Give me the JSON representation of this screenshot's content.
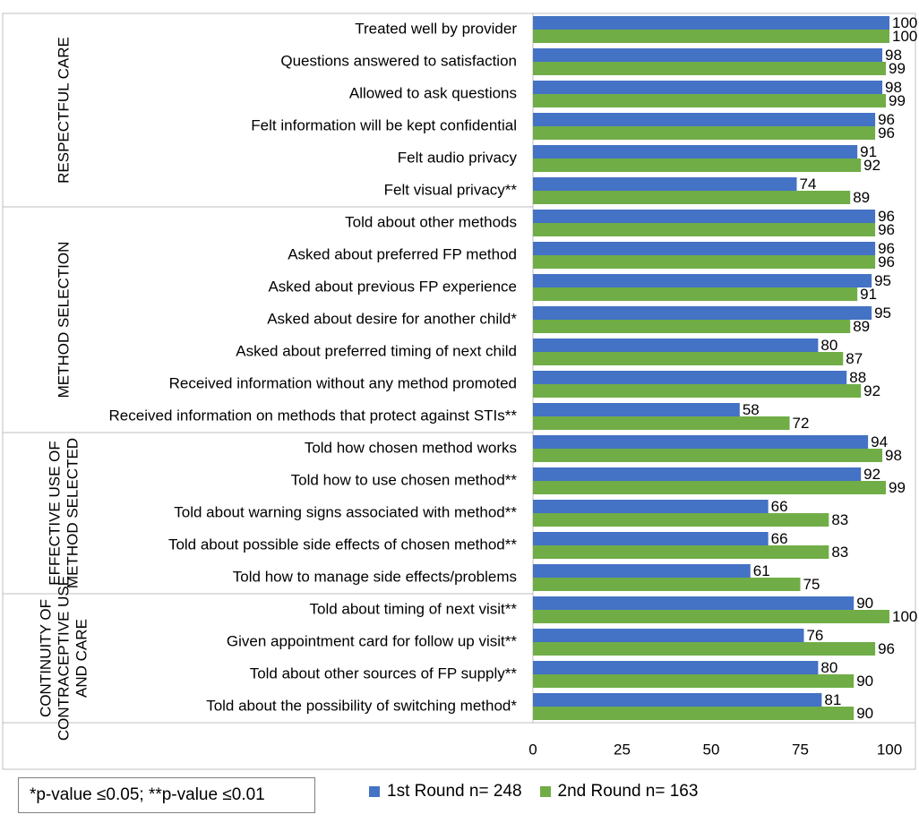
{
  "chart_data": {
    "type": "bar",
    "orientation": "horizontal",
    "xlim": [
      0,
      100
    ],
    "xticks": [
      0,
      25,
      50,
      75,
      100
    ],
    "groups": [
      {
        "label": "RESPECTFUL CARE",
        "count": 6
      },
      {
        "label": "METHOD SELECTION",
        "count": 7
      },
      {
        "label": "EFFECTIVE USE OF METHOD SELECTED",
        "count": 5
      },
      {
        "label": "CONTINUITY OF CONTRACEPTIVE USE AND CARE",
        "count": 4
      }
    ],
    "categories": [
      "Treated well by provider",
      "Questions answered to satisfaction",
      "Allowed to ask questions",
      "Felt information will be kept confidential",
      "Felt audio privacy",
      "Felt visual privacy**",
      "Told about other methods",
      "Asked about preferred FP method",
      "Asked about previous FP experience",
      "Asked about desire for another child*",
      "Asked about preferred timing of next child",
      "Received information without any method promoted",
      "Received information on methods that protect against STIs**",
      "Told how chosen method works",
      "Told how to use chosen method**",
      "Told about warning signs associated with method**",
      "Told about possible side effects of chosen method**",
      "Told how to manage side effects/problems",
      "Told about timing of next visit**",
      "Given appointment card for follow up visit**",
      "Told about other sources of FP supply**",
      "Told about the possibility of switching method*"
    ],
    "series": [
      {
        "name": "1st Round n= 248",
        "color": "#4472c4",
        "values": [
          100,
          98,
          98,
          96,
          91,
          74,
          96,
          96,
          95,
          95,
          80,
          88,
          58,
          94,
          92,
          66,
          66,
          61,
          90,
          76,
          80,
          81
        ]
      },
      {
        "name": "2nd Round n= 163",
        "color": "#70ad47",
        "values": [
          100,
          99,
          99,
          96,
          92,
          89,
          96,
          96,
          91,
          89,
          87,
          92,
          72,
          98,
          99,
          83,
          83,
          75,
          100,
          96,
          90,
          90
        ]
      }
    ]
  },
  "footnote": "*p-value ≤0.05; **p-value ≤0.01"
}
